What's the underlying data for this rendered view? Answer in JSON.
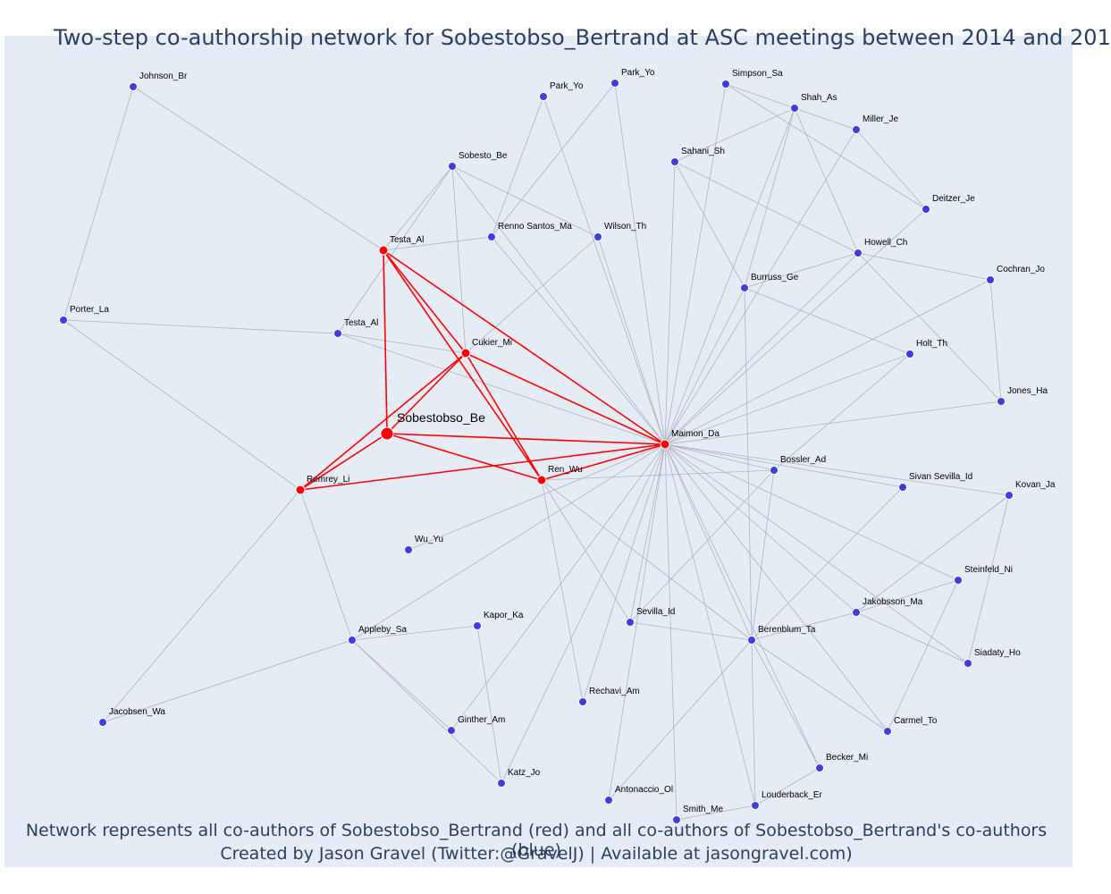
{
  "title": "Two-step co-authorship network for Sobestobso_Bertrand at ASC meetings between 2014 and 201",
  "caption_line1": "Network represents all co-authors of Sobestobso_Bertrand (red) and all co-authors of Sobestobso_Bertrand's co-authors (blue)",
  "caption_line2": "Created by Jason Gravel (Twitter:@GravelJ) | Available at jasongravel.com)",
  "colors": {
    "background": "#e5ecf6",
    "red": "#ff0000",
    "blue": "#3d3de0",
    "edge": "#b0b0c0",
    "text": "#2a3f5f"
  },
  "chart_data": {
    "type": "network",
    "title": "Two-step co-authorship network for Sobestobso_Bertrand at ASC meetings between 2014 and 201",
    "nodes": [
      {
        "id": "center",
        "label": "Sobestobso_Be",
        "group": "center"
      },
      {
        "id": "testa1",
        "label": "Testa_Al",
        "group": "red"
      },
      {
        "id": "cukier",
        "label": "Cukier_Mi",
        "group": "red"
      },
      {
        "id": "maimon",
        "label": "Maimon_Da",
        "group": "red"
      },
      {
        "id": "ren",
        "label": "Ren_Wu",
        "group": "red"
      },
      {
        "id": "remrey",
        "label": "Remrey_Li",
        "group": "red"
      },
      {
        "id": "johnson",
        "label": "Johnson_Br",
        "group": "blue"
      },
      {
        "id": "porter",
        "label": "Porter_La",
        "group": "blue"
      },
      {
        "id": "testa2",
        "label": "Testa_Al",
        "group": "blue"
      },
      {
        "id": "sobesto",
        "label": "Sobesto_Be",
        "group": "blue"
      },
      {
        "id": "parkyo1",
        "label": "Park_Yo",
        "group": "blue"
      },
      {
        "id": "parkyo2",
        "label": "Park_Yo",
        "group": "blue"
      },
      {
        "id": "renno",
        "label": "Renno Santos_Ma",
        "group": "blue"
      },
      {
        "id": "wilson",
        "label": "Wilson_Th",
        "group": "blue"
      },
      {
        "id": "simpson",
        "label": "Simpson_Sa",
        "group": "blue"
      },
      {
        "id": "shah",
        "label": "Shah_As",
        "group": "blue"
      },
      {
        "id": "miller",
        "label": "Miller_Je",
        "group": "blue"
      },
      {
        "id": "sahani",
        "label": "Sahani_Sh",
        "group": "blue"
      },
      {
        "id": "deitzer",
        "label": "Deitzer_Je",
        "group": "blue"
      },
      {
        "id": "howell",
        "label": "Howell_Ch",
        "group": "blue"
      },
      {
        "id": "burruss",
        "label": "Burruss_Ge",
        "group": "blue"
      },
      {
        "id": "cochran",
        "label": "Cochran_Jo",
        "group": "blue"
      },
      {
        "id": "holt",
        "label": "Holt_Th",
        "group": "blue"
      },
      {
        "id": "jones",
        "label": "Jones_Ha",
        "group": "blue"
      },
      {
        "id": "bossler",
        "label": "Bossler_Ad",
        "group": "blue"
      },
      {
        "id": "sivan",
        "label": "Sivan Sevilla_Id",
        "group": "blue"
      },
      {
        "id": "kovan",
        "label": "Kovan_Ja",
        "group": "blue"
      },
      {
        "id": "wuyu",
        "label": "Wu_Yu",
        "group": "blue"
      },
      {
        "id": "steinfeld",
        "label": "Steinfeld_Ni",
        "group": "blue"
      },
      {
        "id": "jakobsson",
        "label": "Jakobsson_Ma",
        "group": "blue"
      },
      {
        "id": "kapor",
        "label": "Kapor_Ka",
        "group": "blue"
      },
      {
        "id": "appleby",
        "label": "Appleby_Sa",
        "group": "blue"
      },
      {
        "id": "sevilla",
        "label": "Sevilla_Id",
        "group": "blue"
      },
      {
        "id": "berenblum",
        "label": "Berenblum_Ta",
        "group": "blue"
      },
      {
        "id": "siadaty",
        "label": "Siadaty_Ho",
        "group": "blue"
      },
      {
        "id": "rechavi",
        "label": "Rechavi_Am",
        "group": "blue"
      },
      {
        "id": "jacobsen",
        "label": "Jacobsen_Wa",
        "group": "blue"
      },
      {
        "id": "ginther",
        "label": "Ginther_Am",
        "group": "blue"
      },
      {
        "id": "carmel",
        "label": "Carmel_To",
        "group": "blue"
      },
      {
        "id": "becker",
        "label": "Becker_Mi",
        "group": "blue"
      },
      {
        "id": "katz",
        "label": "Katz_Jo",
        "group": "blue"
      },
      {
        "id": "antonaccio",
        "label": "Antonaccio_Ol",
        "group": "blue"
      },
      {
        "id": "louderback",
        "label": "Louderback_Er",
        "group": "blue"
      },
      {
        "id": "smith",
        "label": "Smith_Me",
        "group": "blue"
      }
    ],
    "red_edges": [
      [
        "center",
        "testa1"
      ],
      [
        "center",
        "cukier"
      ],
      [
        "center",
        "maimon"
      ],
      [
        "center",
        "ren"
      ],
      [
        "center",
        "remrey"
      ],
      [
        "testa1",
        "cukier"
      ],
      [
        "testa1",
        "maimon"
      ],
      [
        "testa1",
        "ren"
      ],
      [
        "cukier",
        "maimon"
      ],
      [
        "cukier",
        "ren"
      ],
      [
        "cukier",
        "remrey"
      ],
      [
        "maimon",
        "ren"
      ],
      [
        "maimon",
        "remrey"
      ]
    ],
    "gray_edges": [
      [
        "testa1",
        "johnson"
      ],
      [
        "testa1",
        "sobesto"
      ],
      [
        "testa1",
        "renno"
      ],
      [
        "johnson",
        "porter"
      ],
      [
        "porter",
        "testa2"
      ],
      [
        "porter",
        "remrey"
      ],
      [
        "testa2",
        "maimon"
      ],
      [
        "testa2",
        "cukier"
      ],
      [
        "testa2",
        "sobesto"
      ],
      [
        "sobesto",
        "maimon"
      ],
      [
        "sobesto",
        "cukier"
      ],
      [
        "sobesto",
        "wilson"
      ],
      [
        "parkyo1",
        "renno"
      ],
      [
        "parkyo1",
        "maimon"
      ],
      [
        "parkyo2",
        "renno"
      ],
      [
        "parkyo2",
        "maimon"
      ],
      [
        "renno",
        "maimon"
      ],
      [
        "wilson",
        "maimon"
      ],
      [
        "wilson",
        "cukier"
      ],
      [
        "simpson",
        "maimon"
      ],
      [
        "simpson",
        "shah"
      ],
      [
        "simpson",
        "deitzer"
      ],
      [
        "shah",
        "maimon"
      ],
      [
        "shah",
        "miller"
      ],
      [
        "shah",
        "sahani"
      ],
      [
        "shah",
        "burruss"
      ],
      [
        "shah",
        "howell"
      ],
      [
        "miller",
        "deitzer"
      ],
      [
        "miller",
        "maimon"
      ],
      [
        "sahani",
        "maimon"
      ],
      [
        "sahani",
        "burruss"
      ],
      [
        "sahani",
        "howell"
      ],
      [
        "deitzer",
        "maimon"
      ],
      [
        "howell",
        "maimon"
      ],
      [
        "howell",
        "burruss"
      ],
      [
        "howell",
        "jones"
      ],
      [
        "howell",
        "cochran"
      ],
      [
        "burruss",
        "maimon"
      ],
      [
        "burruss",
        "holt"
      ],
      [
        "burruss",
        "berenblum"
      ],
      [
        "cochran",
        "maimon"
      ],
      [
        "cochran",
        "jones"
      ],
      [
        "holt",
        "maimon"
      ],
      [
        "holt",
        "bossler"
      ],
      [
        "jones",
        "maimon"
      ],
      [
        "bossler",
        "maimon"
      ],
      [
        "bossler",
        "ren"
      ],
      [
        "bossler",
        "sevilla"
      ],
      [
        "bossler",
        "berenblum"
      ],
      [
        "sivan",
        "maimon"
      ],
      [
        "sivan",
        "berenblum"
      ],
      [
        "kovan",
        "maimon"
      ],
      [
        "kovan",
        "jakobsson"
      ],
      [
        "kovan",
        "siadaty"
      ],
      [
        "wuyu",
        "maimon"
      ],
      [
        "steinfeld",
        "maimon"
      ],
      [
        "steinfeld",
        "jakobsson"
      ],
      [
        "steinfeld",
        "carmel"
      ],
      [
        "jakobsson",
        "maimon"
      ],
      [
        "jakobsson",
        "berenblum"
      ],
      [
        "jakobsson",
        "siadaty"
      ],
      [
        "kapor",
        "appleby"
      ],
      [
        "kapor",
        "katz"
      ],
      [
        "appleby",
        "remrey"
      ],
      [
        "appleby",
        "jacobsen"
      ],
      [
        "appleby",
        "ginther"
      ],
      [
        "appleby",
        "katz"
      ],
      [
        "appleby",
        "maimon"
      ],
      [
        "sevilla",
        "maimon"
      ],
      [
        "sevilla",
        "ren"
      ],
      [
        "sevilla",
        "berenblum"
      ],
      [
        "berenblum",
        "maimon"
      ],
      [
        "berenblum",
        "ren"
      ],
      [
        "berenblum",
        "becker"
      ],
      [
        "berenblum",
        "antonaccio"
      ],
      [
        "berenblum",
        "louderback"
      ],
      [
        "berenblum",
        "carmel"
      ],
      [
        "siadaty",
        "maimon"
      ],
      [
        "rechavi",
        "maimon"
      ],
      [
        "rechavi",
        "ren"
      ],
      [
        "jacobsen",
        "remrey"
      ],
      [
        "ginther",
        "maimon"
      ],
      [
        "carmel",
        "maimon"
      ],
      [
        "becker",
        "maimon"
      ],
      [
        "katz",
        "maimon"
      ],
      [
        "antonaccio",
        "maimon"
      ],
      [
        "louderback",
        "maimon"
      ],
      [
        "louderback",
        "becker"
      ],
      [
        "smith",
        "maimon"
      ],
      [
        "smith",
        "louderback"
      ]
    ]
  }
}
